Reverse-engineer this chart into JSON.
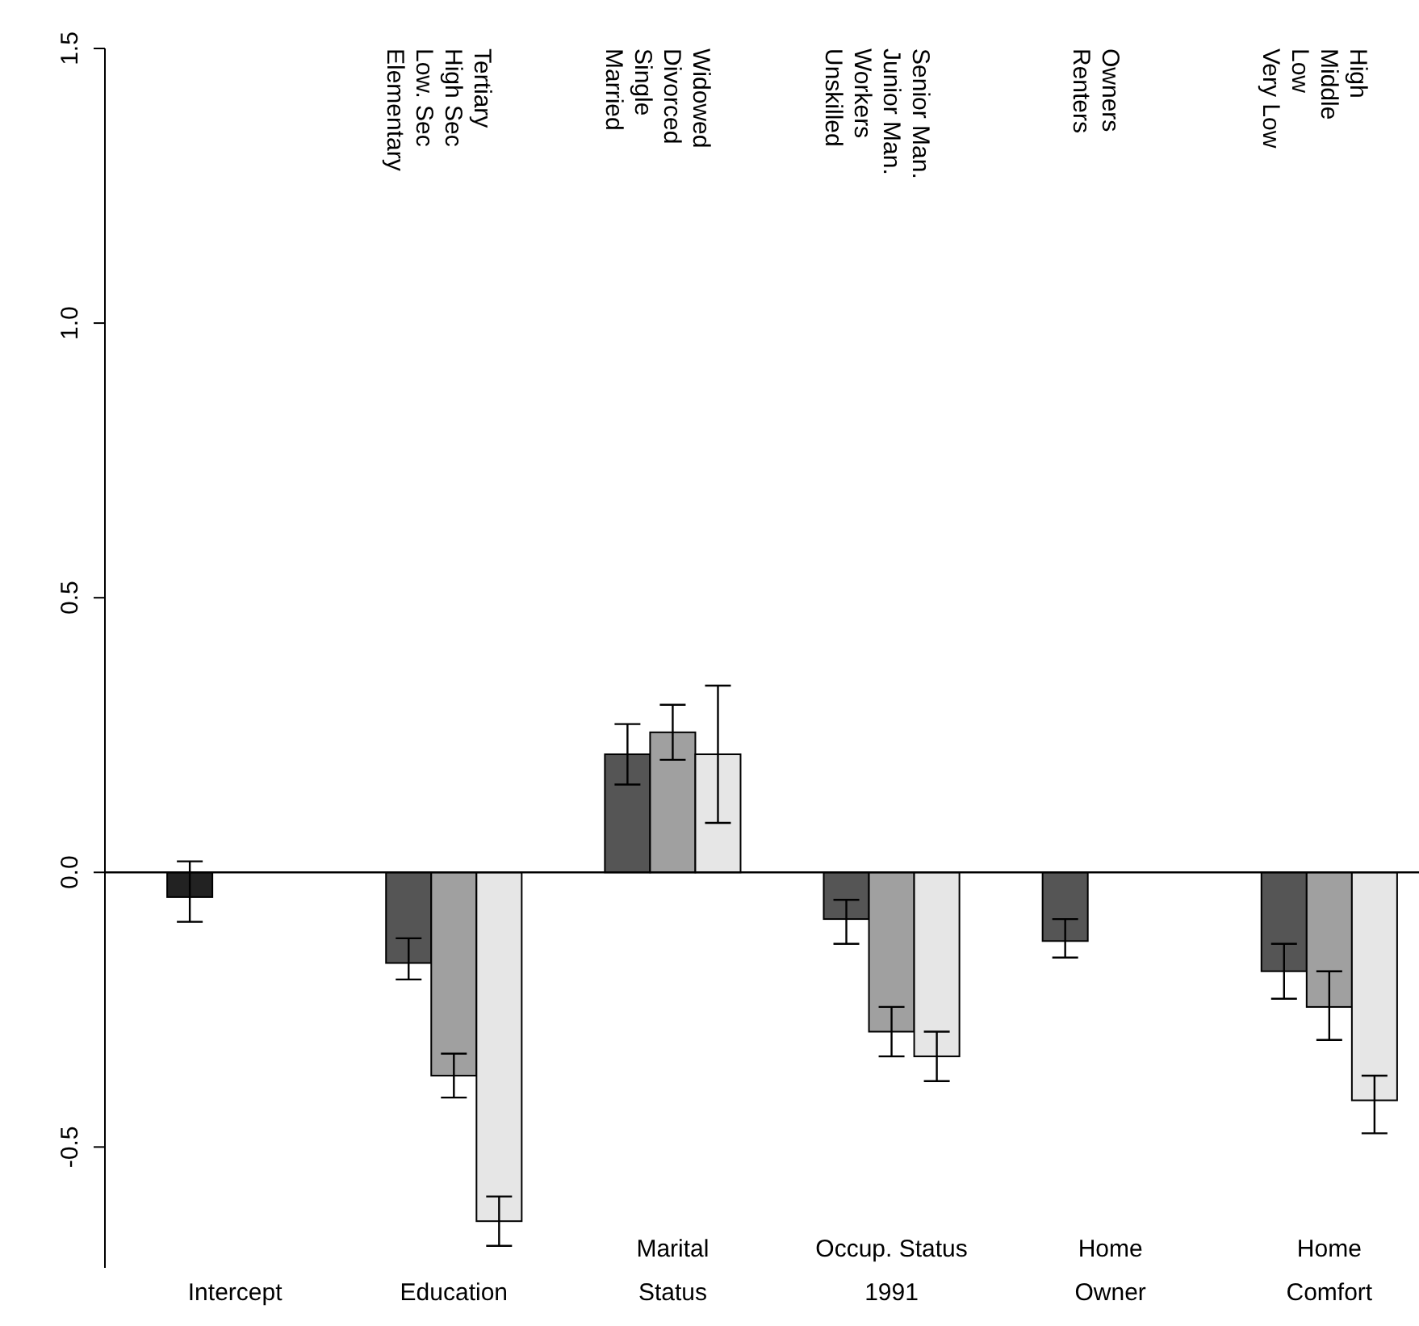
{
  "chart_data": {
    "type": "bar",
    "categories": [
      "Intercept",
      "Education",
      "Marital\nStatus",
      "Occup. Status\n1991",
      "Home\nOwner",
      "Home\nComfort"
    ],
    "series": [
      {
        "color": "#555555",
        "colors": [
          "#222222",
          null,
          null,
          null,
          null,
          null
        ],
        "values": [
          -0.045,
          -0.165,
          0.215,
          -0.085,
          -0.125,
          -0.18
        ],
        "errors": [
          [
            -0.09,
            0.02
          ],
          [
            -0.195,
            -0.12
          ],
          [
            0.16,
            0.27
          ],
          [
            -0.13,
            -0.05
          ],
          [
            -0.155,
            -0.085
          ],
          [
            -0.23,
            -0.13
          ]
        ]
      },
      {
        "color": "#a0a0a0",
        "values": [
          null,
          -0.37,
          0.255,
          -0.29,
          null,
          -0.245
        ],
        "errors": [
          null,
          [
            -0.41,
            -0.33
          ],
          [
            0.205,
            0.305
          ],
          [
            -0.335,
            -0.245
          ],
          null,
          [
            -0.305,
            -0.18
          ]
        ]
      },
      {
        "color": "#e6e6e6",
        "values": [
          null,
          -0.635,
          0.215,
          -0.335,
          null,
          -0.415
        ],
        "errors": [
          null,
          [
            -0.68,
            -0.59
          ],
          [
            0.09,
            0.34
          ],
          [
            -0.38,
            -0.29
          ],
          null,
          [
            -0.475,
            -0.37
          ]
        ]
      }
    ],
    "ylim": [
      -0.72,
      1.5
    ],
    "yticks": [
      {
        "value": -0.5,
        "label": "-0.5"
      },
      {
        "value": 0,
        "label": "0.0"
      },
      {
        "value": 0.5,
        "label": "0.5"
      },
      {
        "value": 1,
        "label": "1.0"
      },
      {
        "value": 1.5,
        "label": "1.5"
      }
    ],
    "ref_lines": [
      {
        "axis": "y",
        "value": 0,
        "color": "#000000"
      }
    ],
    "annotations": [
      "Tertiary\nHigh Sec\nLow. Sec\nElementary",
      "Widowed\nDivorced\nSingle\nMarried",
      "Senior Man.\nJunior Man.\nWorkers\nUnskilled",
      "Owners\nRenters",
      "High\nMiddle\nLow\nVery Low"
    ],
    "grid": false
  }
}
